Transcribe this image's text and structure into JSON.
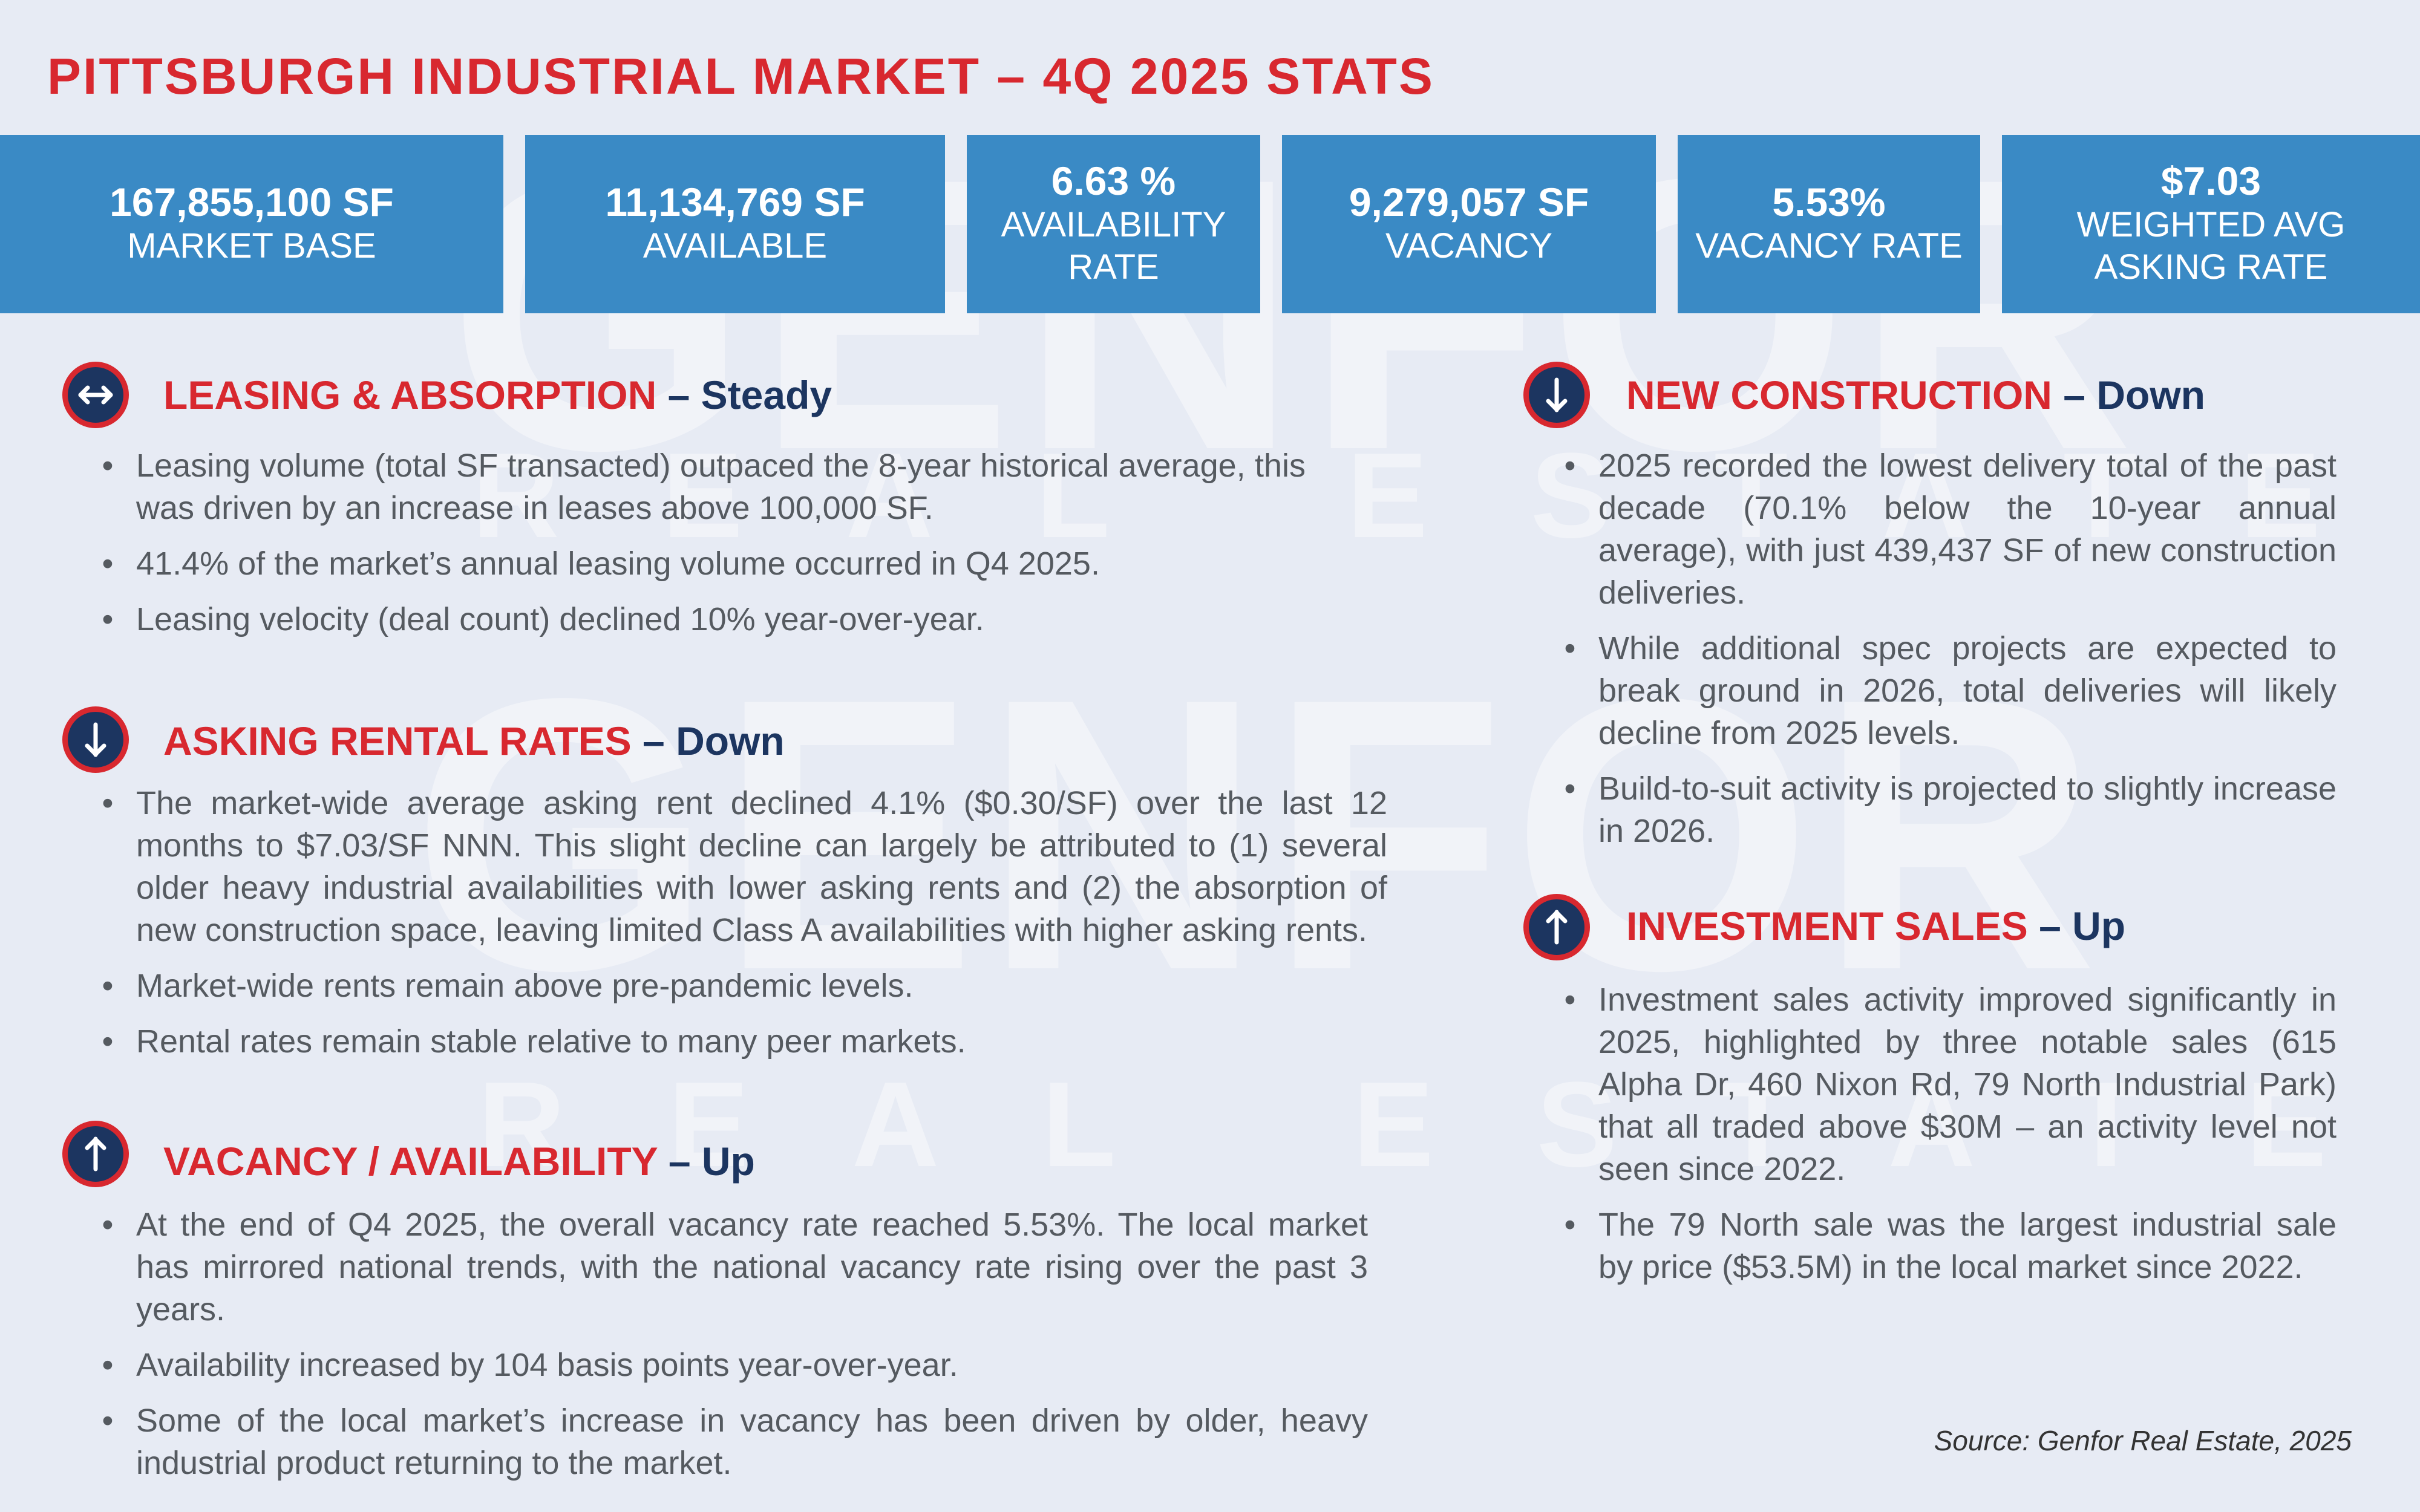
{
  "title": "PITTSBURGH INDUSTRIAL MARKET – 4Q 2025 STATS",
  "watermark": {
    "word": "GENFOR",
    "subtitle": "REAL ESTATE"
  },
  "stats": [
    {
      "value": "167,855,100 SF",
      "label_lines": [
        "MARKET BASE"
      ]
    },
    {
      "value": "11,134,769 SF",
      "label_lines": [
        "AVAILABLE"
      ]
    },
    {
      "value": "6.63 %",
      "label_lines": [
        "AVAILABILITY",
        "RATE"
      ]
    },
    {
      "value": "9,279,057 SF",
      "label_lines": [
        "VACANCY"
      ]
    },
    {
      "value": "5.53%",
      "label_lines": [
        "VACANCY RATE"
      ]
    },
    {
      "value": "$7.03",
      "label_lines": [
        "WEIGHTED AVG",
        "ASKING RATE"
      ]
    }
  ],
  "sections": {
    "leasing": {
      "icon": "left-right-arrow-icon",
      "name": "LEASING & ABSORPTION",
      "dash": " – ",
      "trend": "Steady",
      "bullets": [
        "Leasing volume (total SF transacted) outpaced the 8-year historical average, this was driven by an increase in leases above 100,000 SF.",
        "41.4% of the market’s annual leasing volume occurred in Q4 2025.",
        "Leasing velocity (deal count) declined 10% year-over-year."
      ]
    },
    "asking": {
      "icon": "down-arrow-icon",
      "name": "ASKING RENTAL RATES",
      "dash": " – ",
      "trend": "Down",
      "bullets": [
        "The market-wide average asking rent declined 4.1% ($0.30/SF) over the last 12 months to $7.03/SF NNN. This slight decline can largely be attributed to (1) several older heavy industrial availabilities with lower asking rents and (2) the absorption of new construction space, leaving limited Class A availabilities with higher asking rents.",
        "Market-wide rents remain above pre-pandemic levels.",
        "Rental rates remain stable relative to many peer markets."
      ]
    },
    "vacancy": {
      "icon": "up-arrow-icon",
      "name": "VACANCY / AVAILABILITY",
      "dash": " – ",
      "trend": "Up",
      "bullets": [
        "At the end of Q4 2025, the overall vacancy rate reached 5.53%. The local market has mirrored national trends, with the national vacancy rate rising over the past 3 years.",
        "Availability increased by 104 basis points year-over-year.",
        "Some of the local market’s increase in vacancy has been driven by older, heavy industrial product returning to the market."
      ]
    },
    "construction": {
      "icon": "down-arrow-icon",
      "name": "NEW CONSTRUCTION",
      "dash": " – ",
      "trend": "Down",
      "bullets": [
        "2025 recorded the lowest delivery total of the past decade (70.1% below the 10-year annual average), with just 439,437 SF of new construction deliveries.",
        "While additional spec projects are expected to break ground in 2026, total deliveries will likely decline from 2025 levels.",
        "Build-to-suit activity is projected to slightly increase in 2026."
      ]
    },
    "investment": {
      "icon": "up-arrow-icon",
      "name": "INVESTMENT SALES",
      "dash": " – ",
      "trend": "Up",
      "bullets": [
        "Investment sales activity improved significantly in 2025, highlighted by three notable sales (615 Alpha Dr, 460 Nixon Rd, 79 North Industrial Park) that all traded above $30M – an activity level not seen since 2022.",
        "The 79 North sale was the largest industrial sale by price ($53.5M) in the local market since 2022."
      ]
    }
  },
  "source": "Source: Genfor Real Estate, 2025",
  "colors": {
    "red": "#d8282f",
    "navy": "#1c3560",
    "blue": "#3a8ac5",
    "background": "#e7ebf4",
    "text": "#555a60"
  }
}
